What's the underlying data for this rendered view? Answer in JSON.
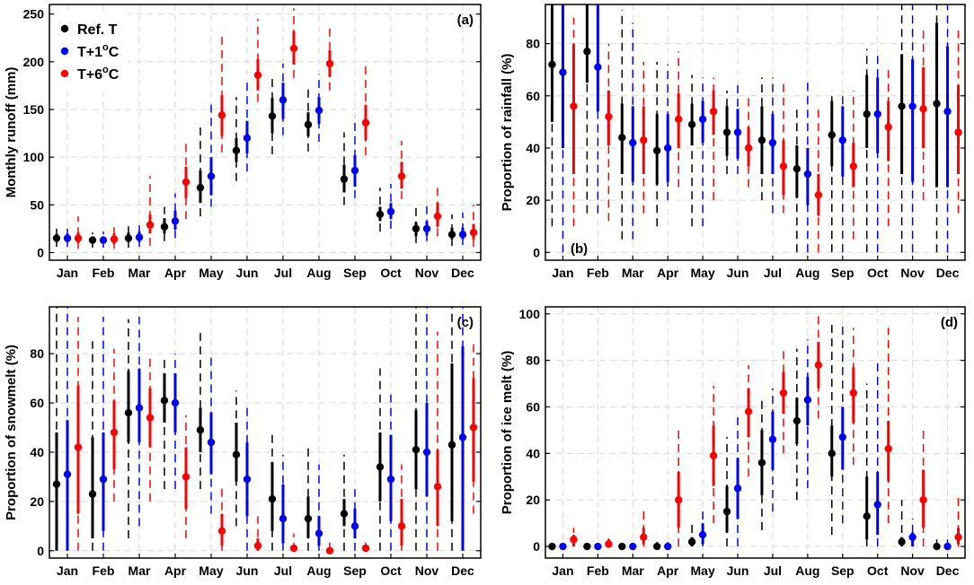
{
  "figure": {
    "months": [
      "Jan",
      "Feb",
      "Mar",
      "Apr",
      "May",
      "Jun",
      "Jul",
      "Aug",
      "Sep",
      "Oct",
      "Nov",
      "Dec"
    ],
    "series": [
      {
        "name": "Ref. T",
        "color": "#000000"
      },
      {
        "name": "T+1°C",
        "color": "#0000ff"
      },
      {
        "name": "T+6°C",
        "color": "#ff0000"
      }
    ],
    "legend": [
      {
        "base": "Ref. T",
        "sup": ""
      },
      {
        "base": "T+1",
        "sup": "o",
        "tail": "C"
      },
      {
        "base": "T+6",
        "sup": "o",
        "tail": "C"
      }
    ]
  },
  "chart_data": [
    {
      "type": "scatter",
      "title": "",
      "panel_label": "(a)",
      "xlabel": "",
      "ylabel": "Monthly runoff (mm)",
      "categories": [
        "Jan",
        "Feb",
        "Mar",
        "Apr",
        "May",
        "Jun",
        "Jul",
        "Aug",
        "Sep",
        "Oct",
        "Nov",
        "Dec"
      ],
      "ylim": [
        -8,
        260
      ],
      "yticks": [
        0,
        50,
        100,
        150,
        200,
        250
      ],
      "grid": true,
      "legend": "top-left",
      "series": [
        {
          "name": "Ref. T",
          "values": [
            15,
            13,
            15,
            27,
            68,
            107,
            143,
            134,
            77,
            40,
            25,
            19
          ],
          "inner_low": [
            11,
            10,
            11,
            20,
            52,
            95,
            125,
            122,
            63,
            33,
            17,
            14
          ],
          "inner_high": [
            20,
            17,
            21,
            36,
            86,
            120,
            162,
            147,
            92,
            48,
            32,
            26
          ],
          "outer_low": [
            6,
            5,
            5,
            12,
            38,
            75,
            103,
            106,
            50,
            22,
            10,
            7
          ],
          "outer_high": [
            25,
            21,
            30,
            48,
            135,
            163,
            182,
            172,
            126,
            68,
            48,
            40
          ]
        },
        {
          "name": "T+1°C",
          "values": [
            15,
            13,
            16,
            33,
            80,
            120,
            160,
            149,
            86,
            43,
            25,
            19
          ],
          "inner_low": [
            11,
            10,
            11,
            24,
            60,
            104,
            140,
            135,
            69,
            35,
            18,
            14
          ],
          "inner_high": [
            20,
            17,
            22,
            44,
            100,
            138,
            178,
            163,
            102,
            52,
            33,
            26
          ],
          "outer_low": [
            6,
            5,
            6,
            15,
            48,
            85,
            123,
            116,
            57,
            25,
            12,
            8
          ],
          "outer_high": [
            25,
            22,
            32,
            62,
            155,
            180,
            198,
            187,
            142,
            72,
            50,
            42
          ]
        },
        {
          "name": "T+6°C",
          "values": [
            15,
            14,
            29,
            74,
            144,
            186,
            214,
            198,
            136,
            80,
            38,
            21
          ],
          "inner_low": [
            10,
            9,
            20,
            57,
            122,
            170,
            197,
            184,
            118,
            67,
            27,
            14
          ],
          "inner_high": [
            21,
            20,
            40,
            90,
            165,
            203,
            232,
            212,
            155,
            95,
            52,
            30
          ],
          "outer_low": [
            4,
            4,
            7,
            35,
            105,
            158,
            183,
            170,
            102,
            56,
            17,
            6
          ],
          "outer_high": [
            38,
            29,
            80,
            118,
            226,
            245,
            256,
            240,
            196,
            117,
            68,
            50
          ]
        }
      ]
    },
    {
      "type": "scatter",
      "title": "",
      "panel_label": "(b)",
      "xlabel": "",
      "ylabel": "Proportion of rainfall (%)",
      "categories": [
        "Jan",
        "Feb",
        "Mar",
        "Apr",
        "May",
        "Jun",
        "Jul",
        "Aug",
        "Sep",
        "Oct",
        "Nov",
        "Dec"
      ],
      "ylim": [
        -3,
        95
      ],
      "yticks": [
        0,
        20,
        40,
        60,
        80
      ],
      "grid": true,
      "series": [
        {
          "name": "Ref. T",
          "values": [
            72,
            77,
            44,
            39,
            49,
            46,
            43,
            32,
            45,
            53,
            56,
            57
          ],
          "inner_low": [
            50,
            65,
            30,
            26,
            41,
            37,
            30,
            21,
            33,
            40,
            30,
            25
          ],
          "inner_high": [
            95,
            95,
            57,
            53,
            57,
            56,
            56,
            41,
            58,
            68,
            76,
            88
          ],
          "outer_low": [
            10,
            15,
            5,
            10,
            10,
            30,
            20,
            0,
            0,
            0,
            0,
            0
          ],
          "outer_high": [
            95,
            95,
            93,
            73,
            68,
            62,
            67,
            55,
            62,
            78,
            95,
            95
          ]
        },
        {
          "name": "T+1°C",
          "values": [
            69,
            71,
            42,
            40,
            51,
            46,
            42,
            30,
            43,
            53,
            56,
            54
          ],
          "inner_low": [
            40,
            54,
            27,
            27,
            42,
            36,
            30,
            18,
            29,
            38,
            27,
            25
          ],
          "inner_high": [
            95,
            95,
            56,
            53,
            58,
            55,
            53,
            40,
            56,
            67,
            74,
            79
          ],
          "outer_low": [
            0,
            15,
            5,
            20,
            10,
            30,
            15,
            0,
            0,
            0,
            0,
            0
          ],
          "outer_high": [
            95,
            95,
            88,
            72,
            67,
            64,
            67,
            66,
            62,
            77,
            95,
            95
          ]
        },
        {
          "name": "T+6°C",
          "values": [
            56,
            52,
            43,
            51,
            54,
            40,
            33,
            22,
            33,
            48,
            55,
            46
          ],
          "inner_low": [
            30,
            41,
            30,
            40,
            45,
            33,
            22,
            14,
            25,
            35,
            40,
            30
          ],
          "inner_high": [
            80,
            62,
            56,
            61,
            62,
            48,
            43,
            30,
            42,
            58,
            71,
            64
          ],
          "outer_low": [
            10,
            12,
            15,
            25,
            20,
            25,
            15,
            0,
            5,
            10,
            20,
            15
          ],
          "outer_high": [
            90,
            80,
            73,
            77,
            67,
            61,
            65,
            55,
            62,
            70,
            85,
            85
          ]
        }
      ]
    },
    {
      "type": "scatter",
      "title": "",
      "panel_label": "(c)",
      "xlabel": "",
      "ylabel": "Proportion of snowmelt (%)",
      "categories": [
        "Jan",
        "Feb",
        "Mar",
        "Apr",
        "May",
        "Jun",
        "Jul",
        "Aug",
        "Sep",
        "Oct",
        "Nov",
        "Dec"
      ],
      "ylim": [
        -3,
        99
      ],
      "yticks": [
        0,
        20,
        40,
        60,
        80
      ],
      "grid": true,
      "series": [
        {
          "name": "Ref. T",
          "values": [
            27,
            23,
            56,
            61,
            49,
            39,
            21,
            13,
            15,
            34,
            41,
            43
          ],
          "inner_low": [
            0,
            5,
            44,
            52,
            40,
            28,
            8,
            5,
            10,
            20,
            25,
            12
          ],
          "inner_high": [
            48,
            46,
            73,
            72,
            58,
            52,
            36,
            22,
            21,
            48,
            57,
            76
          ],
          "outer_low": [
            0,
            0,
            5,
            25,
            25,
            10,
            0,
            0,
            0,
            0,
            0,
            0
          ],
          "outer_high": [
            99,
            85,
            94,
            79,
            89,
            65,
            49,
            43,
            39,
            74,
            99,
            99
          ]
        },
        {
          "name": "T+1°C",
          "values": [
            31,
            29,
            58,
            60,
            44,
            29,
            13,
            7,
            10,
            29,
            40,
            46
          ],
          "inner_low": [
            0,
            8,
            44,
            48,
            31,
            14,
            3,
            2,
            5,
            12,
            22,
            0
          ],
          "inner_high": [
            53,
            48,
            74,
            72,
            56,
            44,
            27,
            14,
            17,
            47,
            60,
            83
          ],
          "outer_low": [
            0,
            0,
            10,
            25,
            15,
            0,
            0,
            0,
            0,
            0,
            0,
            0
          ],
          "outer_high": [
            99,
            95,
            95,
            80,
            79,
            58,
            39,
            35,
            25,
            64,
            99,
            99
          ]
        },
        {
          "name": "T+6°C",
          "values": [
            42,
            48,
            54,
            30,
            8,
            2,
            1,
            0,
            1,
            10,
            26,
            50
          ],
          "inner_low": [
            15,
            33,
            42,
            17,
            2,
            0,
            0,
            0,
            0,
            2,
            10,
            28
          ],
          "inner_high": [
            67,
            61,
            66,
            42,
            15,
            5,
            2,
            1,
            2,
            21,
            41,
            70
          ],
          "outer_low": [
            0,
            20,
            20,
            5,
            0,
            0,
            0,
            0,
            0,
            0,
            0,
            15
          ],
          "outer_high": [
            95,
            82,
            78,
            55,
            26,
            14,
            7,
            4,
            5,
            35,
            89,
            85
          ]
        }
      ]
    },
    {
      "type": "scatter",
      "title": "",
      "panel_label": "(d)",
      "xlabel": "",
      "ylabel": "Proportion of ice melt (%)",
      "categories": [
        "Jan",
        "Feb",
        "Mar",
        "Apr",
        "May",
        "Jun",
        "Jul",
        "Aug",
        "Sep",
        "Oct",
        "Nov",
        "Dec"
      ],
      "ylim": [
        -5,
        103
      ],
      "yticks": [
        0,
        20,
        40,
        60,
        80,
        100
      ],
      "grid": true,
      "series": [
        {
          "name": "Ref. T",
          "values": [
            0,
            0,
            0,
            0,
            2,
            15,
            36,
            54,
            40,
            13,
            2,
            0
          ],
          "inner_low": [
            0,
            0,
            0,
            0,
            0,
            6,
            22,
            44,
            30,
            3,
            0,
            0
          ],
          "inner_high": [
            0,
            0,
            0,
            1,
            4,
            26,
            50,
            64,
            52,
            30,
            4,
            1
          ],
          "outer_low": [
            0,
            0,
            0,
            0,
            0,
            0,
            7,
            20,
            5,
            0,
            0,
            0
          ],
          "outer_high": [
            1,
            1,
            1,
            2,
            10,
            47,
            63,
            85,
            96,
            70,
            20,
            3
          ]
        },
        {
          "name": "T+1°C",
          "values": [
            0,
            0,
            0,
            0,
            5,
            25,
            46,
            63,
            47,
            18,
            4,
            0
          ],
          "inner_low": [
            0,
            0,
            0,
            0,
            1,
            12,
            33,
            52,
            33,
            5,
            0,
            0
          ],
          "inner_high": [
            0,
            0,
            0,
            1,
            10,
            38,
            58,
            73,
            60,
            32,
            6,
            1
          ],
          "outer_low": [
            0,
            0,
            0,
            0,
            0,
            0,
            15,
            25,
            10,
            0,
            0,
            0
          ],
          "outer_high": [
            1,
            1,
            1,
            2,
            15,
            57,
            68,
            89,
            96,
            79,
            12,
            3
          ]
        },
        {
          "name": "T+6°C",
          "values": [
            3,
            1,
            4,
            20,
            39,
            58,
            66,
            78,
            66,
            42,
            20,
            4
          ],
          "inner_low": [
            0,
            0,
            1,
            8,
            26,
            47,
            57,
            68,
            53,
            28,
            8,
            1
          ],
          "inner_high": [
            5,
            3,
            8,
            32,
            52,
            68,
            75,
            88,
            77,
            54,
            33,
            8
          ],
          "outer_low": [
            0,
            0,
            0,
            0,
            10,
            30,
            40,
            55,
            35,
            10,
            0,
            0
          ],
          "outer_high": [
            8,
            4,
            17,
            50,
            69,
            78,
            85,
            100,
            94,
            94,
            52,
            23
          ]
        }
      ]
    }
  ]
}
